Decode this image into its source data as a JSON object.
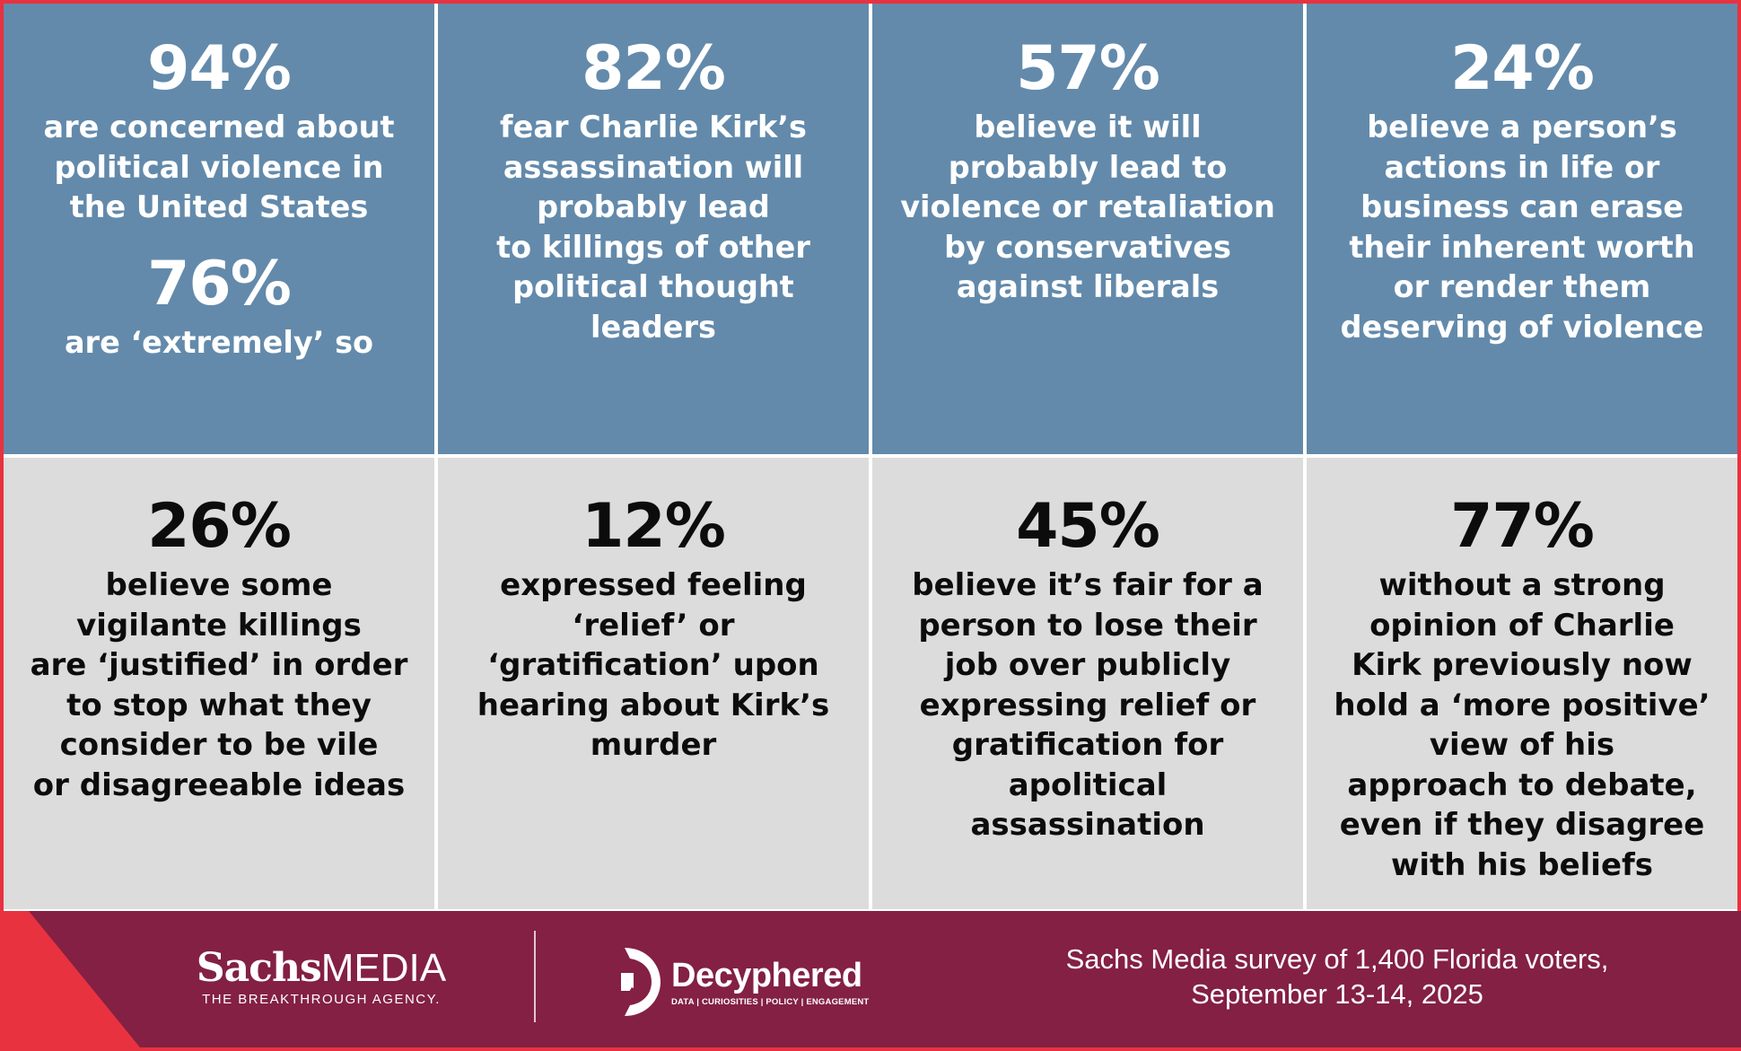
{
  "stats_top": [
    {
      "pct": "94%",
      "desc": "are concerned about\npolitical violence in\nthe United States",
      "pct2": "76%",
      "desc2": "are ‘extremely’ so"
    },
    {
      "pct": "82%",
      "desc": "fear Charlie Kirk’s\nassassination will\nprobably lead\nto killings of other\npolitical thought\nleaders"
    },
    {
      "pct": "57%",
      "desc": "believe it will\nprobably lead to\nviolence or retaliation\nby conservatives\nagainst liberals"
    },
    {
      "pct": "24%",
      "desc": "believe a person’s\nactions in life or\nbusiness can erase\ntheir inherent worth\nor render them\ndeserving of violence"
    }
  ],
  "stats_bottom": [
    {
      "pct": "26%",
      "desc": "believe some\nvigilante killings\nare ‘justified’ in order\nto stop what they\nconsider to be vile\nor disagreeable ideas"
    },
    {
      "pct": "12%",
      "desc": "expressed feeling\n‘relief’ or\n‘gratification’ upon\nhearing about Kirk’s\nmurder"
    },
    {
      "pct": "45%",
      "desc": "believe it’s fair for a\nperson to lose their\njob over publicly\nexpressing relief or\ngratification for\napolitical\nassassination"
    },
    {
      "pct": "77%",
      "desc": "without a strong\nopinion of Charlie\nKirk previously now\nhold a ‘more positive’\nview of his\napproach to debate,\neven if they disagree\nwith his beliefs"
    }
  ],
  "footer": {
    "sachs_name_a": "Sachs",
    "sachs_name_b": "MEDIA",
    "sachs_tagline": "THE BREAKTHROUGH AGENCY.",
    "decyphered_name": "Decyphered",
    "decyphered_tagline": "DATA | CURIOSITIES | POLICY | ENGAGEMENT",
    "source": "Sachs Media survey of 1,400 Florida voters,\nSeptember 13-14, 2025"
  },
  "colors": {
    "top_cell": "#638aab",
    "bottom_cell": "#dcdcdc",
    "footer_band": "#832043",
    "accent_red": "#e8323f"
  }
}
